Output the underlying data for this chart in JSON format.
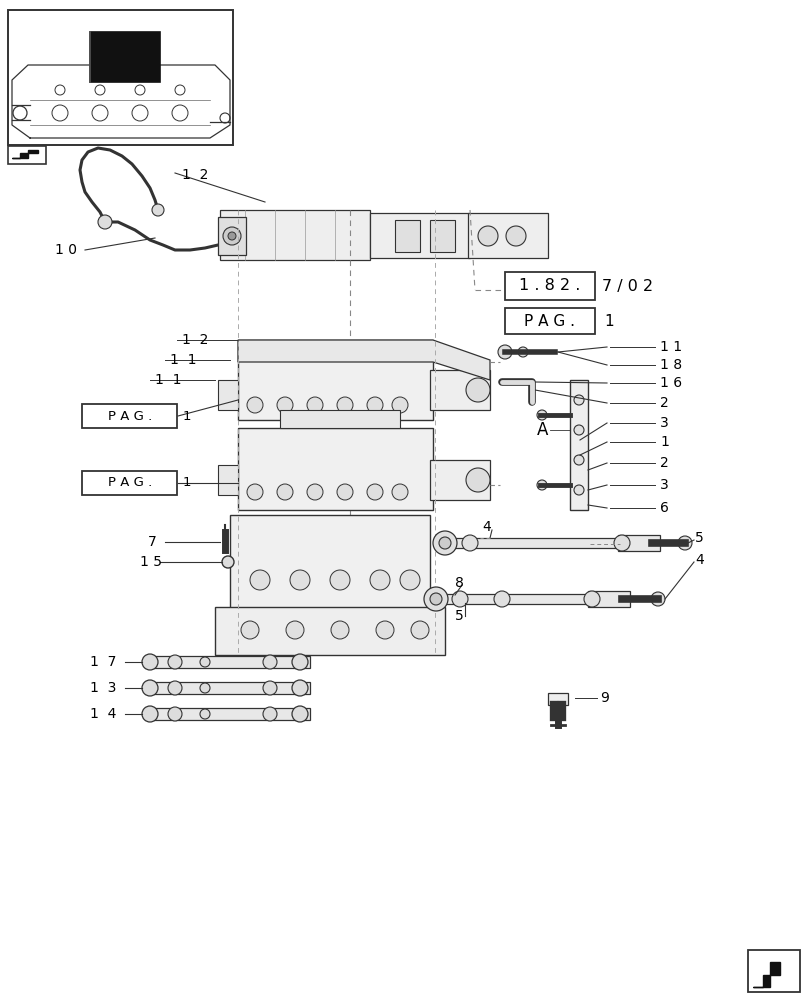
{
  "bg_color": "#ffffff",
  "lc": "#333333",
  "tc": "#000000",
  "fig_width": 8.12,
  "fig_height": 10.0,
  "dpi": 100,
  "ref_text1": "1 . 8 2 .",
  "ref_text2": "7 / 0 2",
  "pag_text": "P A G .",
  "pag_val": "1",
  "label_12_top": "1  2",
  "label_10": "1 0",
  "label_A": "A",
  "labels_left_mid": [
    "1  2",
    "1  1",
    "1  1"
  ],
  "labels_right_col": [
    "1 1",
    "1 8",
    "1 6",
    "2",
    "3",
    "1",
    "2",
    "3",
    "6"
  ],
  "labels_lower_left": [
    "7",
    "1 5"
  ],
  "labels_lower_linkage": [
    "1  7",
    "1  3",
    "1  4"
  ],
  "labels_lower_right": [
    "4",
    "5",
    "4",
    "8",
    "5",
    "9"
  ]
}
